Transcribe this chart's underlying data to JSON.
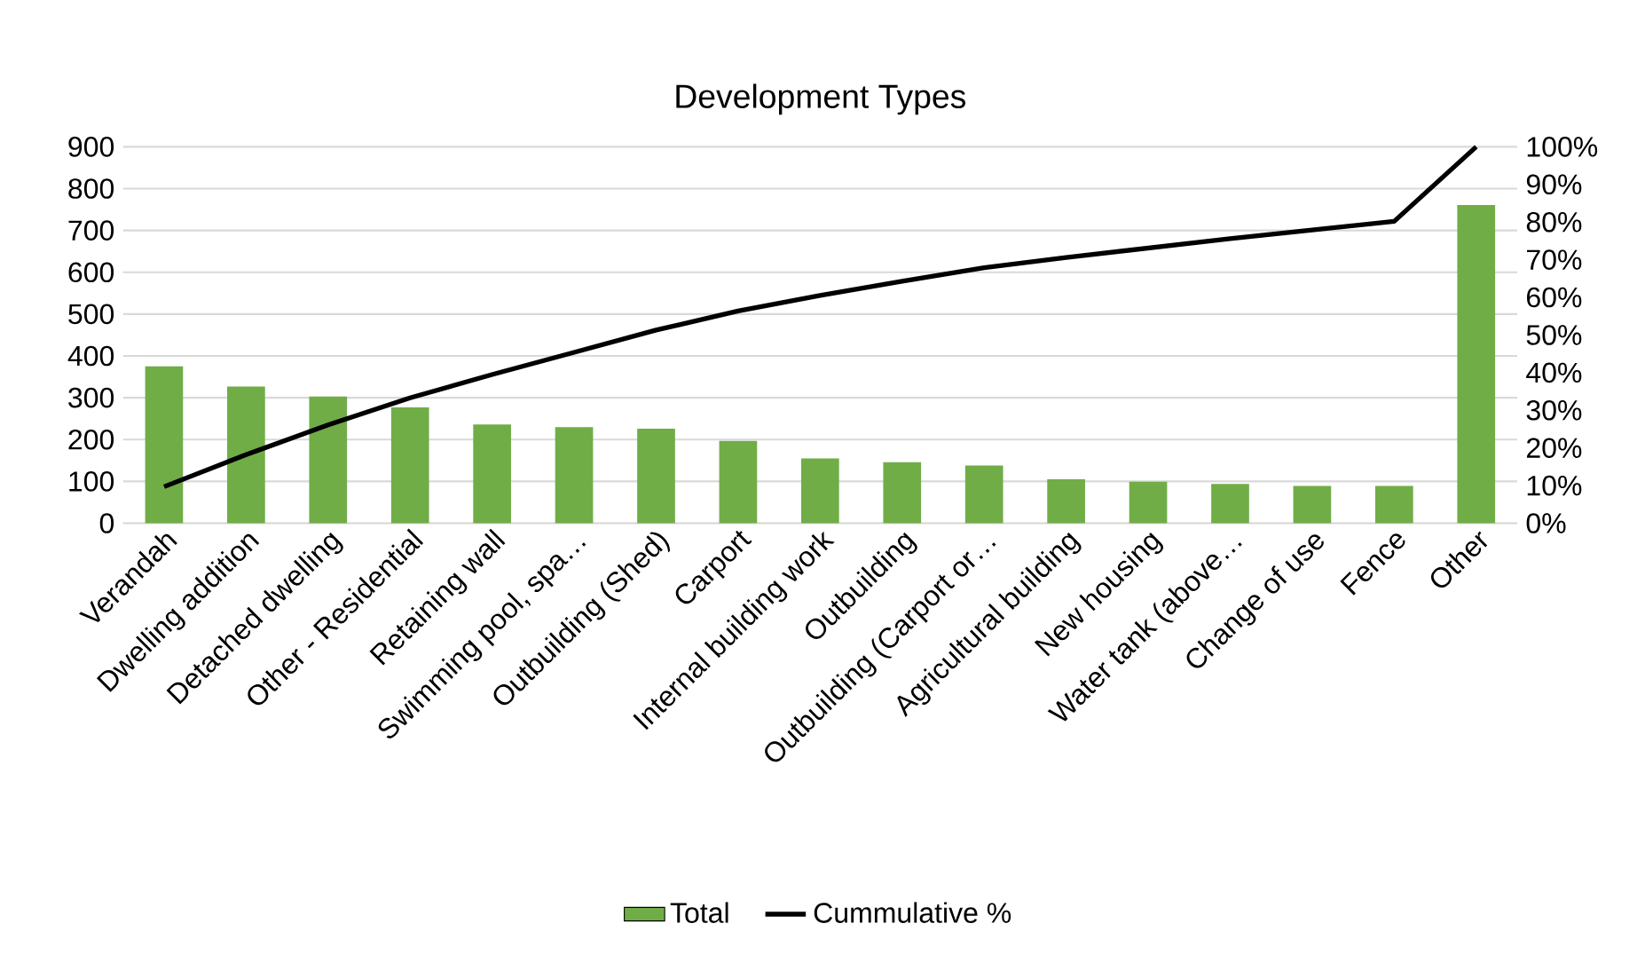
{
  "chart_data": {
    "type": "bar",
    "title": "Development Types",
    "categories": [
      "Verandah",
      "Dwelling addition",
      "Detached dwelling",
      "Other - Residential",
      "Retaining wall",
      "Swimming pool, spa…",
      "Outbuilding (Shed)",
      "Carport",
      "Internal building work",
      "Outbuilding",
      "Outbuilding (Carport or…",
      "Agricultural building",
      "New housing",
      "Water tank (above…",
      "Change of use",
      "Fence",
      "Other"
    ],
    "series": [
      {
        "name": "Total",
        "color": "#70ad47",
        "values": [
          375,
          327,
          303,
          277,
          236,
          230,
          226,
          197,
          155,
          146,
          138,
          105,
          99,
          94,
          89,
          89,
          761
        ]
      },
      {
        "name": "Cummulative %",
        "type": "line",
        "axis": "y2",
        "color": "#000000",
        "values": [
          9.7,
          18.2,
          26.1,
          33.3,
          39.5,
          45.4,
          51.3,
          56.4,
          60.5,
          64.3,
          67.9,
          70.6,
          73.1,
          75.6,
          77.9,
          80.2,
          100
        ]
      }
    ],
    "ylim": [
      0,
      900
    ],
    "yticks": [
      0,
      100,
      200,
      300,
      400,
      500,
      600,
      700,
      800,
      900
    ],
    "y2lim": [
      0,
      100
    ],
    "y2ticks": [
      {
        "value": 0,
        "label": "0%"
      },
      {
        "value": 10,
        "label": "10%"
      },
      {
        "value": 20,
        "label": "20%"
      },
      {
        "value": 30,
        "label": "30%"
      },
      {
        "value": 40,
        "label": "40%"
      },
      {
        "value": 50,
        "label": "50%"
      },
      {
        "value": 60,
        "label": "60%"
      },
      {
        "value": 70,
        "label": "70%"
      },
      {
        "value": 80,
        "label": "80%"
      },
      {
        "value": 90,
        "label": "90%"
      },
      {
        "value": 100,
        "label": "100%"
      }
    ],
    "grid": "y",
    "legend": "bottom",
    "marker": "none",
    "line_style": "solid"
  }
}
